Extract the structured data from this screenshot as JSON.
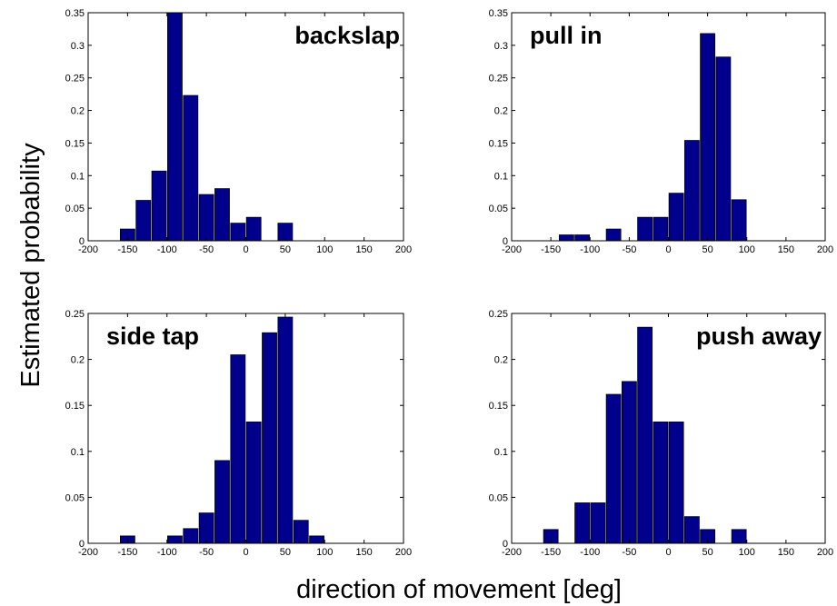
{
  "figure": {
    "ylabel": "Estimated probability",
    "xlabel": "direction of movement [deg]"
  },
  "chart_data": [
    {
      "type": "bar",
      "title": "backslap",
      "xlim": [
        -200,
        200
      ],
      "ylim": [
        0,
        0.35
      ],
      "xticks": [
        "-200",
        "-150",
        "-100",
        "-50",
        "0",
        "50",
        "100",
        "150",
        "200"
      ],
      "yticks": [
        "0",
        "0.05",
        "0.1",
        "0.15",
        "0.2",
        "0.25",
        "0.3",
        "0.35"
      ],
      "x": [
        -170,
        -150,
        -130,
        -110,
        -90,
        -70,
        -50,
        -30,
        -10,
        10,
        30,
        50,
        70,
        90,
        110,
        130,
        150,
        170,
        190
      ],
      "values": [
        0,
        0.018,
        0.062,
        0.107,
        0.35,
        0.223,
        0.071,
        0.08,
        0.027,
        0.036,
        0,
        0.027,
        0,
        0,
        0,
        0,
        0,
        0,
        0
      ]
    },
    {
      "type": "bar",
      "title": "pull in",
      "xlim": [
        -200,
        200
      ],
      "ylim": [
        0,
        0.35
      ],
      "xticks": [
        "-200",
        "-150",
        "-100",
        "-50",
        "0",
        "50",
        "100",
        "150",
        "200"
      ],
      "yticks": [
        "0",
        "0.05",
        "0.1",
        "0.15",
        "0.2",
        "0.25",
        "0.3",
        "0.35"
      ],
      "x": [
        -170,
        -150,
        -130,
        -110,
        -90,
        -70,
        -50,
        -30,
        -10,
        10,
        30,
        50,
        70,
        90,
        110,
        130,
        150,
        170,
        190
      ],
      "values": [
        0,
        0,
        0.009,
        0.009,
        0,
        0.018,
        0,
        0.036,
        0.036,
        0.073,
        0.154,
        0.318,
        0.282,
        0.063,
        0,
        0,
        0,
        0,
        0
      ]
    },
    {
      "type": "bar",
      "title": "side tap",
      "xlim": [
        -200,
        200
      ],
      "ylim": [
        0,
        0.25
      ],
      "xticks": [
        "-200",
        "-150",
        "-100",
        "-50",
        "0",
        "50",
        "100",
        "150",
        "200"
      ],
      "yticks": [
        "0",
        "0.05",
        "0.1",
        "0.15",
        "0.2",
        "0.25"
      ],
      "x": [
        -170,
        -150,
        -130,
        -110,
        -90,
        -70,
        -50,
        -30,
        -10,
        10,
        30,
        50,
        70,
        90,
        110,
        130,
        150,
        170,
        190
      ],
      "values": [
        0,
        0.008,
        0,
        0,
        0.008,
        0.016,
        0.033,
        0.09,
        0.205,
        0.132,
        0.229,
        0.246,
        0.025,
        0.008,
        0,
        0,
        0,
        0,
        0
      ]
    },
    {
      "type": "bar",
      "title": "push away",
      "xlim": [
        -200,
        200
      ],
      "ylim": [
        0,
        0.25
      ],
      "xticks": [
        "-200",
        "-150",
        "-100",
        "-50",
        "0",
        "50",
        "100",
        "150",
        "200"
      ],
      "yticks": [
        "0",
        "0.05",
        "0.1",
        "0.15",
        "0.2",
        "0.25"
      ],
      "x": [
        -170,
        -150,
        -130,
        -110,
        -90,
        -70,
        -50,
        -30,
        -10,
        10,
        30,
        50,
        70,
        90,
        110,
        130,
        150,
        170,
        190
      ],
      "values": [
        0,
        0.015,
        0,
        0.044,
        0.044,
        0.162,
        0.176,
        0.235,
        0.132,
        0.132,
        0.029,
        0.015,
        0,
        0.015,
        0,
        0,
        0,
        0,
        0
      ]
    }
  ],
  "colors": {
    "bar_fill": "#00008c",
    "bar_stroke": "#000000",
    "axis": "#000000"
  }
}
